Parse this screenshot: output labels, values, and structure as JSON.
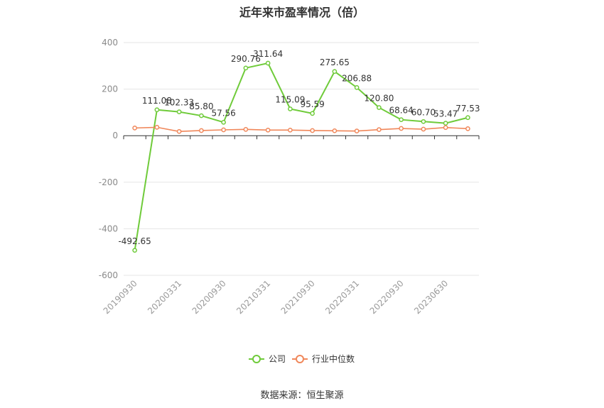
{
  "title": "近年来市盈率情况（倍）",
  "source": "数据来源：恒生聚源",
  "colors": {
    "company": "#6fcb3a",
    "industry": "#f0875a",
    "grid": "#e6e6e6",
    "axis": "#333333"
  },
  "chart_data": {
    "type": "line",
    "title": "近年来市盈率情况（倍）",
    "ylim": [
      -600,
      400
    ],
    "yticks": [
      400,
      200,
      0,
      -200,
      -400,
      -600
    ],
    "x": [
      "20190930",
      "20191231",
      "20200331",
      "20200630",
      "20200930",
      "20201231",
      "20210331",
      "20210630",
      "20210930",
      "20211231",
      "20220331",
      "20220630",
      "20220930",
      "20221231",
      "20230630",
      "20231231"
    ],
    "x_tick_labels": [
      "20190930",
      "20200331",
      "20200930",
      "20210331",
      "20210930",
      "20220331",
      "20220930",
      "20230630"
    ],
    "grid": true,
    "legend_position": "bottom",
    "series": [
      {
        "name": "公司",
        "values": [
          -492.65,
          111.08,
          102.33,
          85.8,
          57.56,
          290.76,
          311.64,
          115.09,
          95.59,
          275.65,
          206.88,
          120.8,
          68.64,
          60.7,
          53.47,
          77.53
        ],
        "labels": [
          "-492.65",
          "111.08",
          "102.33",
          "85.80",
          "57.56",
          "290.76",
          "311.64",
          "115.09",
          "95.59",
          "275.65",
          "206.88",
          "120.80",
          "68.64",
          "60.70",
          "53.47",
          "77.53"
        ]
      },
      {
        "name": "行业中位数",
        "values": [
          33,
          36,
          18,
          22,
          25,
          27,
          24,
          24,
          22,
          21,
          20,
          26,
          31,
          28,
          35,
          30
        ]
      }
    ]
  }
}
